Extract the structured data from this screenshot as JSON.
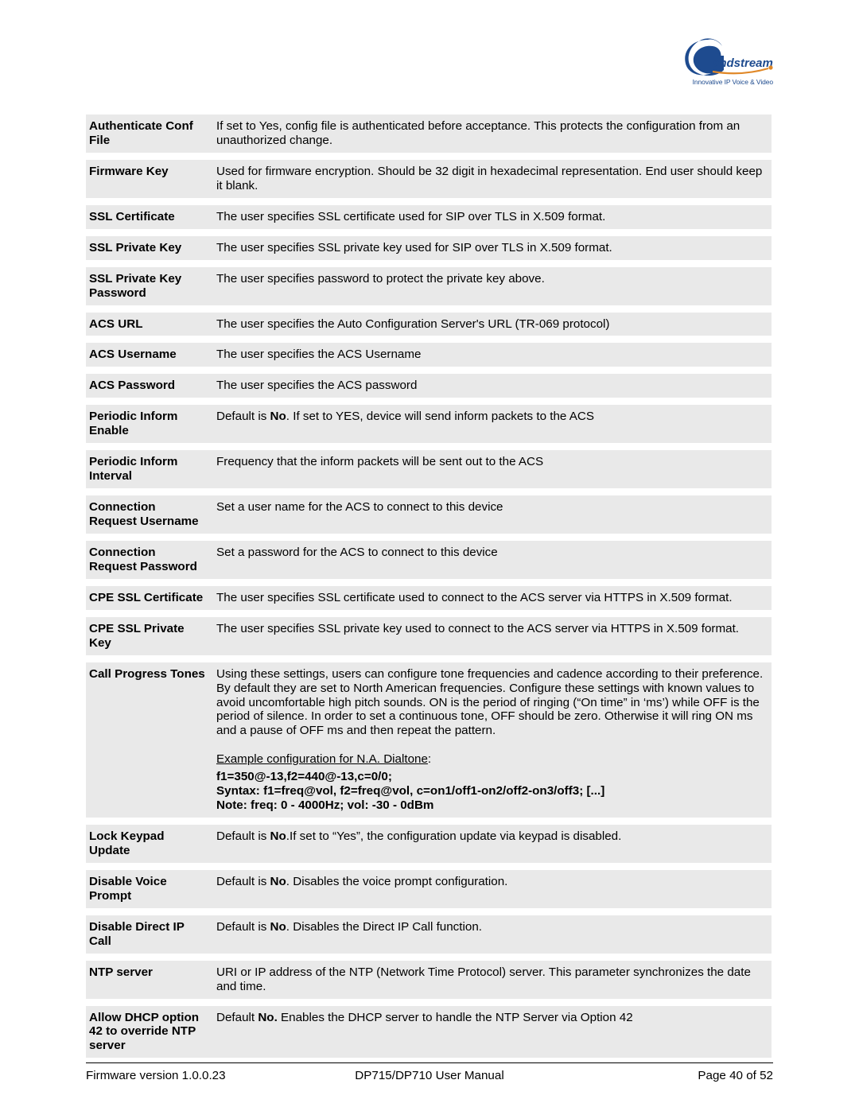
{
  "logo": {
    "brand_text": "andstream",
    "tagline": "Innovative IP Voice & Video",
    "color_primary": "#1e4b8f",
    "color_arc": "#e08828"
  },
  "rows": [
    {
      "label": "Authenticate Conf File",
      "desc": "If set to Yes, config file is authenticated before acceptance.  This protects the configuration from an unauthorized change."
    },
    {
      "label": "Firmware Key",
      "desc": "Used for firmware encryption.  Should be 32 digit in hexadecimal representation.  End user should keep it blank."
    },
    {
      "label": "SSL Certificate",
      "desc": "The user specifies SSL certificate used for SIP over TLS in X.509 format."
    },
    {
      "label": "SSL Private Key",
      "desc": "The user specifies SSL private key used for SIP over TLS in X.509 format."
    },
    {
      "label": "SSL Private Key Password",
      "desc": "The user specifies password to protect the private key above."
    },
    {
      "label": "ACS URL",
      "desc": "The user specifies the Auto Configuration Server's URL (TR-069 protocol)"
    },
    {
      "label": "ACS Username",
      "desc": "The user specifies the ACS Username"
    },
    {
      "label": "ACS Password",
      "desc": "The user specifies the ACS password"
    },
    {
      "label": "Periodic Inform Enable",
      "desc_pre": "Default is ",
      "desc_bold": "No",
      "desc_post": ". If set to YES, device will send inform packets to the ACS"
    },
    {
      "label": "Periodic Inform Interval",
      "desc": "Frequency that the inform packets will be sent out to the ACS"
    },
    {
      "label": "Connection Request Username",
      "desc": "Set a user name for the ACS to connect to this device"
    },
    {
      "label": "Connection Request Password",
      "desc": "Set a password for the ACS to connect to this device"
    },
    {
      "label": "CPE SSL Certificate",
      "desc": "The user specifies SSL certificate used to connect to the ACS server via HTTPS in X.509 format."
    },
    {
      "label": "CPE SSL Private Key",
      "desc": "The user specifies SSL private key used to connect to the ACS server via HTTPS in X.509 format."
    },
    {
      "label": "Call Progress Tones",
      "cpt": {
        "para": "Using these settings, users can configure tone frequencies and cadence according to their preference. By default they are set to North American frequencies. Configure these settings with known values to avoid uncomfortable high pitch sounds. ON is the period of ringing (“On time” in ‘ms’) while OFF is the period of silence. In order to set a continuous tone, OFF should be zero. Otherwise it will ring ON ms and a pause of OFF ms and then repeat the pattern.",
        "example_label": "Example configuration for N.A. Dialtone",
        "line1": "f1=350@-13,f2=440@-13,c=0/0;",
        "line2": "Syntax: f1=freq@vol, f2=freq@vol, c=on1/off1-on2/off2-on3/off3; [...]",
        "line3": "Note: freq: 0 - 4000Hz; vol: -30 - 0dBm"
      }
    },
    {
      "label": "Lock Keypad Update",
      "desc_pre": "Default is ",
      "desc_bold": "No",
      "desc_post": ".If set to “Yes”, the configuration update via keypad is disabled."
    },
    {
      "label": "Disable Voice Prompt",
      "desc_pre": "Default is ",
      "desc_bold": "No",
      "desc_post": ". Disables the voice prompt configuration."
    },
    {
      "label": "Disable Direct IP Call",
      "desc_pre": "Default is ",
      "desc_bold": "No",
      "desc_post": ". Disables the Direct IP Call function."
    },
    {
      "label": "NTP server",
      "desc": "URI or IP address of the NTP (Network Time Protocol) server. This parameter synchronizes the date and time."
    },
    {
      "label": "Allow DHCP option 42 to override NTP server",
      "desc_pre": "Default ",
      "desc_bold": "No.",
      "desc_post": " Enables the DHCP server to handle the NTP Server via Option 42"
    }
  ],
  "footer": {
    "left": "Firmware version 1.0.0.23",
    "center": "DP715/DP710 User Manual",
    "right": "Page 40 of 52"
  }
}
